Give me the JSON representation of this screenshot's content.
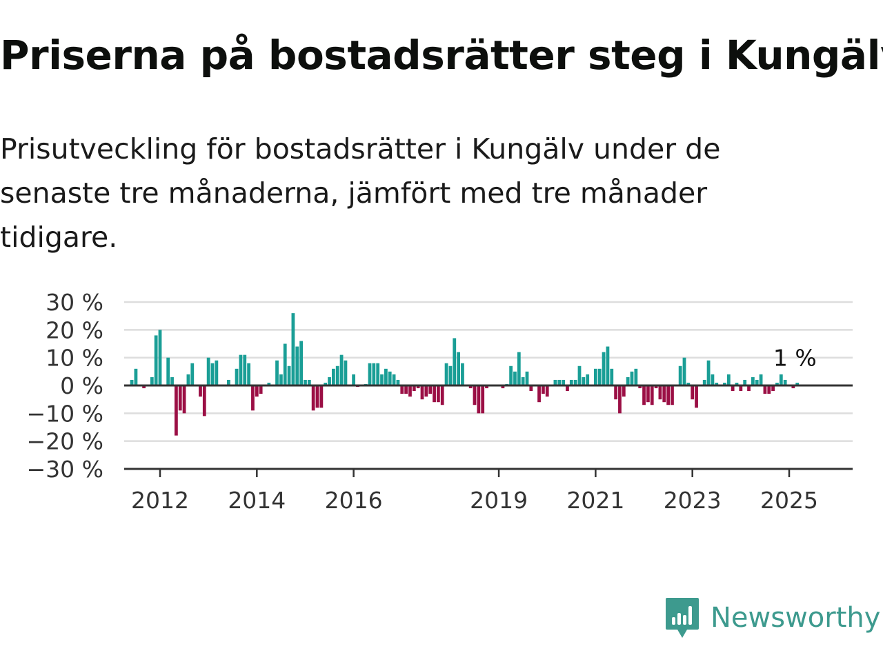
{
  "title": "Priserna på bostadsrätter steg i Kungälv",
  "subtitle": "Prisutveckling för bostadsrätter i Kungälv under de senaste tre månaderna, jämfört med tre månader tidigare.",
  "brand": {
    "name": "Newsworthy",
    "color": "#3d9a8e"
  },
  "colors": {
    "positive": "#1a9e96",
    "negative": "#9b0f45",
    "grid": "#dddddd",
    "axis": "#333333"
  },
  "chart_data": {
    "type": "bar",
    "ylim": [
      -30,
      30
    ],
    "y_ticks": [
      30,
      20,
      10,
      0,
      -10,
      -20,
      -30
    ],
    "y_tick_labels": [
      "30 %",
      "20 %",
      "10 %",
      "0 %",
      "−10 %",
      "−20 %",
      "−30 %"
    ],
    "x_ticks": [
      "2012",
      "2014",
      "2016",
      "2019",
      "2021",
      "2023",
      "2025"
    ],
    "last_value_label": "1 %",
    "start": "2011-06",
    "frequency": "monthly",
    "values": [
      2,
      6,
      0,
      -1,
      0,
      3,
      18,
      20,
      0,
      10,
      3,
      -18,
      -9,
      -10,
      4,
      8,
      0,
      -4,
      -11,
      10,
      8,
      9,
      0,
      0,
      2,
      0,
      6,
      11,
      11,
      8,
      -9,
      -4,
      -3,
      0,
      1,
      0,
      9,
      4,
      15,
      7,
      26,
      14,
      16,
      2,
      2,
      -9,
      -8,
      -8,
      1,
      3,
      6,
      7,
      11,
      9,
      0,
      4,
      -0.5,
      0,
      0.5,
      8,
      8,
      8,
      4,
      6,
      5,
      4,
      2,
      -3,
      -3,
      -4,
      -2,
      -1,
      -5,
      -4,
      -3,
      -6,
      -6,
      -7,
      8,
      7,
      17,
      12,
      8,
      0,
      -1,
      -7,
      -10,
      -10,
      -1,
      0,
      0,
      0,
      -1,
      0.5,
      7,
      5,
      12,
      3,
      5,
      -2,
      0,
      -6,
      -3,
      -4,
      0,
      2,
      2,
      2,
      -2,
      2,
      2,
      7,
      3,
      4,
      0,
      6,
      6,
      12,
      14,
      6,
      -5,
      -10,
      -4,
      3,
      5,
      6,
      -1,
      -7,
      -6,
      -7,
      -1,
      -5,
      -6,
      -7,
      -7,
      0,
      7,
      10,
      1,
      -5,
      -8,
      0,
      2,
      9,
      4,
      1,
      0,
      1,
      4,
      -2,
      1,
      -2,
      2,
      -2,
      3,
      2,
      4,
      -3,
      -3,
      -2,
      1,
      4,
      2,
      0,
      -1,
      1
    ]
  }
}
